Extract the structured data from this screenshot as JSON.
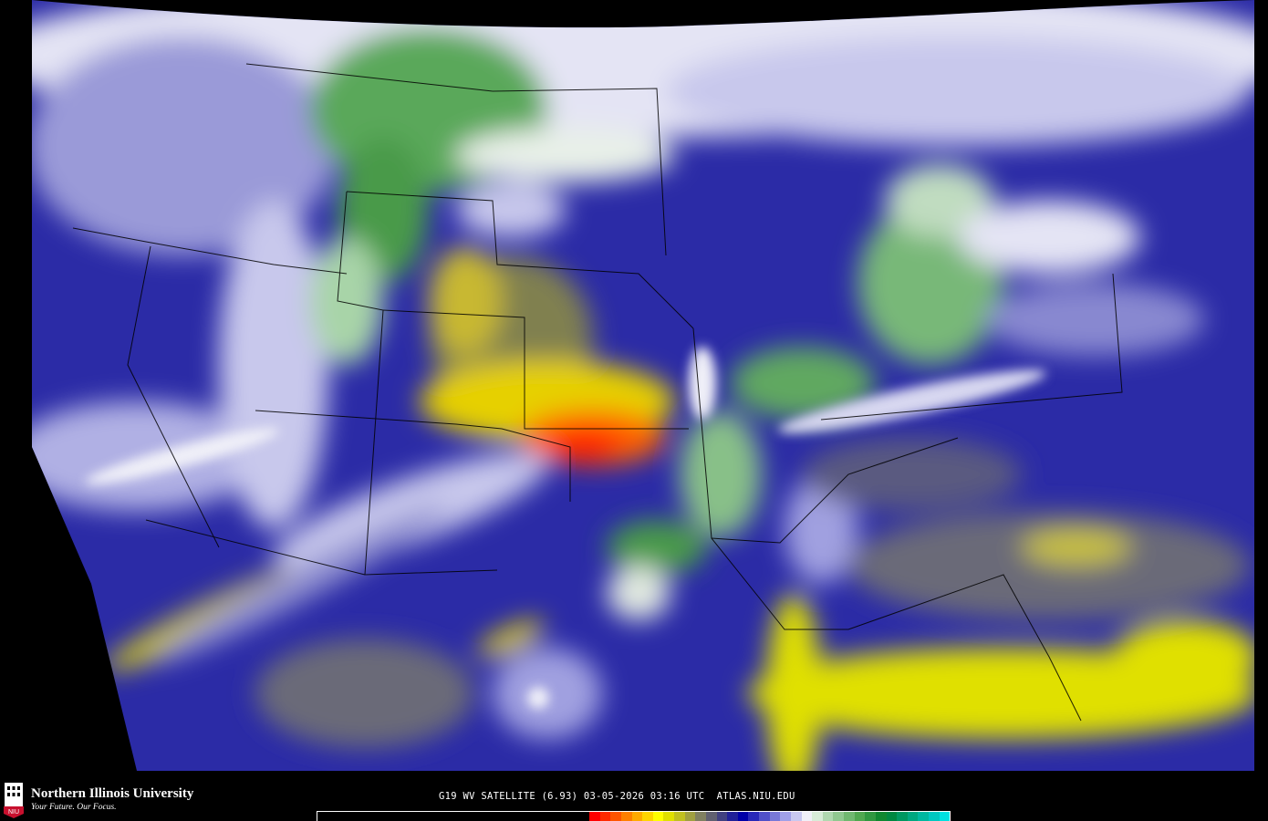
{
  "branding": {
    "institution": "Northern Illinois University",
    "tagline": "Your Future. Our Focus.",
    "logo_text": "NIU"
  },
  "caption": "G19 WV SATELLITE (6.93) 03-05-2026 03:16 UTC  ATLAS.NIU.EDU",
  "colorbar": {
    "colors": [
      "#ff0000",
      "#ff2a00",
      "#ff5500",
      "#ff8000",
      "#ffaa00",
      "#ffd400",
      "#ffff00",
      "#e0e000",
      "#c0c020",
      "#a0a040",
      "#808060",
      "#606070",
      "#404080",
      "#202098",
      "#0000a8",
      "#2828b8",
      "#5050c8",
      "#7878d8",
      "#a0a0e8",
      "#c8c8f0",
      "#f0f0f8",
      "#d8ecd8",
      "#b0d8b0",
      "#90c890",
      "#70b870",
      "#50a850",
      "#309840",
      "#108830",
      "#008840",
      "#009860",
      "#00a880",
      "#00b8a0",
      "#00c8c0",
      "#00e0e0"
    ]
  },
  "map": {
    "base_color": "#2b2ba6",
    "product": "water vapor imagery"
  }
}
